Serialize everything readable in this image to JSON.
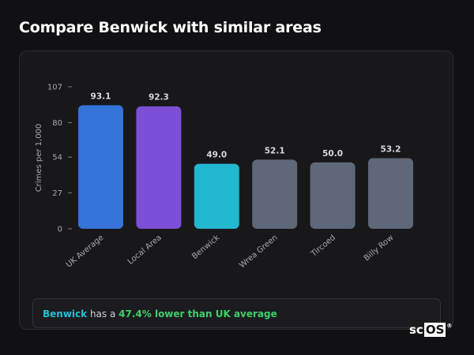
{
  "heading": "Compare Benwick with similar areas",
  "chart_data": {
    "type": "bar",
    "categories": [
      "UK Average",
      "Local Area",
      "Benwick",
      "Wrea Green",
      "Tircoed",
      "Billy Row"
    ],
    "values": [
      93.1,
      92.3,
      49.0,
      52.1,
      50.0,
      53.2
    ],
    "value_labels": [
      "93.1",
      "92.3",
      "49.0",
      "52.1",
      "50.0",
      "53.2"
    ],
    "bar_colors": [
      "#3574d9",
      "#7b4fd6",
      "#22b8cf",
      "#5f6878",
      "#5f6878",
      "#5f6878"
    ],
    "ylabel": "Crimes per 1,000",
    "yticks": [
      0,
      27,
      54,
      80,
      107
    ],
    "ylim": [
      0,
      107
    ],
    "grid": false
  },
  "callout": {
    "area": "Benwick",
    "mid": " has a ",
    "delta": "47.4% lower than UK average"
  },
  "logo": {
    "prefix": "sc",
    "boxed": "OS",
    "mark": "®"
  }
}
